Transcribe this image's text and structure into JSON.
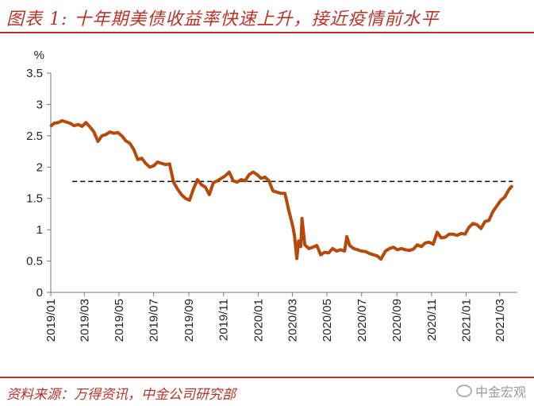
{
  "header": {
    "title": "图表 1: 十年期美债收益率快速上升，接近疫情前水平"
  },
  "footer": {
    "source": "资料来源：万得资讯，中金公司研究部",
    "watermark": "中金宏观"
  },
  "colors": {
    "accent": "#b5352a",
    "series": "#b64a0c",
    "reference": "#000000"
  },
  "icons": {
    "watermark": "wechat-logo-icon"
  },
  "chart_data": {
    "type": "line",
    "unit_label": "%",
    "ylim": [
      0,
      3.5
    ],
    "yticks": [
      "0",
      "0.5",
      "1",
      "1.5",
      "2",
      "2.5",
      "3",
      "3.5"
    ],
    "xlim": [
      "2019-01-01",
      "2021-04-01"
    ],
    "xticks": [
      "2019/01",
      "2019/03",
      "2019/05",
      "2019/07",
      "2019/09",
      "2019/11",
      "2020/01",
      "2020/03",
      "2020/05",
      "2020/07",
      "2020/09",
      "2020/11",
      "2021/01",
      "2021/03"
    ],
    "reference_line": {
      "value": 1.77,
      "style": "dashed",
      "from": "2019-02-08",
      "to": "2021-03-24"
    },
    "grid": false,
    "legend": "none",
    "series": [
      {
        "points": [
          [
            "2019-01-02",
            2.66
          ],
          [
            "2019-01-07",
            2.7
          ],
          [
            "2019-01-14",
            2.71
          ],
          [
            "2019-01-21",
            2.74
          ],
          [
            "2019-01-28",
            2.72
          ],
          [
            "2019-02-04",
            2.7
          ],
          [
            "2019-02-11",
            2.66
          ],
          [
            "2019-02-18",
            2.68
          ],
          [
            "2019-02-25",
            2.65
          ],
          [
            "2019-03-04",
            2.71
          ],
          [
            "2019-03-11",
            2.64
          ],
          [
            "2019-03-18",
            2.56
          ],
          [
            "2019-03-25",
            2.41
          ],
          [
            "2019-04-01",
            2.5
          ],
          [
            "2019-04-08",
            2.52
          ],
          [
            "2019-04-15",
            2.56
          ],
          [
            "2019-04-22",
            2.54
          ],
          [
            "2019-04-29",
            2.55
          ],
          [
            "2019-05-06",
            2.5
          ],
          [
            "2019-05-13",
            2.42
          ],
          [
            "2019-05-20",
            2.38
          ],
          [
            "2019-05-27",
            2.28
          ],
          [
            "2019-06-03",
            2.12
          ],
          [
            "2019-06-10",
            2.14
          ],
          [
            "2019-06-17",
            2.06
          ],
          [
            "2019-06-24",
            2.0
          ],
          [
            "2019-07-01",
            2.02
          ],
          [
            "2019-07-08",
            2.08
          ],
          [
            "2019-07-15",
            2.06
          ],
          [
            "2019-07-22",
            2.04
          ],
          [
            "2019-07-29",
            2.05
          ],
          [
            "2019-08-05",
            1.76
          ],
          [
            "2019-08-12",
            1.65
          ],
          [
            "2019-08-19",
            1.56
          ],
          [
            "2019-08-26",
            1.5
          ],
          [
            "2019-09-02",
            1.47
          ],
          [
            "2019-09-09",
            1.65
          ],
          [
            "2019-09-16",
            1.8
          ],
          [
            "2019-09-23",
            1.72
          ],
          [
            "2019-09-30",
            1.68
          ],
          [
            "2019-10-07",
            1.56
          ],
          [
            "2019-10-14",
            1.75
          ],
          [
            "2019-10-21",
            1.78
          ],
          [
            "2019-10-28",
            1.82
          ],
          [
            "2019-11-04",
            1.86
          ],
          [
            "2019-11-11",
            1.92
          ],
          [
            "2019-11-18",
            1.78
          ],
          [
            "2019-11-25",
            1.76
          ],
          [
            "2019-12-02",
            1.8
          ],
          [
            "2019-12-09",
            1.78
          ],
          [
            "2019-12-16",
            1.88
          ],
          [
            "2019-12-23",
            1.92
          ],
          [
            "2019-12-30",
            1.88
          ],
          [
            "2020-01-06",
            1.82
          ],
          [
            "2020-01-13",
            1.84
          ],
          [
            "2020-01-20",
            1.78
          ],
          [
            "2020-01-27",
            1.62
          ],
          [
            "2020-02-03",
            1.6
          ],
          [
            "2020-02-10",
            1.58
          ],
          [
            "2020-02-17",
            1.58
          ],
          [
            "2020-02-24",
            1.3
          ],
          [
            "2020-03-02",
            1.05
          ],
          [
            "2020-03-05",
            0.9
          ],
          [
            "2020-03-09",
            0.54
          ],
          [
            "2020-03-12",
            0.82
          ],
          [
            "2020-03-16",
            0.73
          ],
          [
            "2020-03-18",
            1.18
          ],
          [
            "2020-03-23",
            0.76
          ],
          [
            "2020-03-30",
            0.7
          ],
          [
            "2020-04-06",
            0.72
          ],
          [
            "2020-04-13",
            0.75
          ],
          [
            "2020-04-20",
            0.6
          ],
          [
            "2020-04-27",
            0.64
          ],
          [
            "2020-05-04",
            0.63
          ],
          [
            "2020-05-11",
            0.7
          ],
          [
            "2020-05-18",
            0.66
          ],
          [
            "2020-05-25",
            0.68
          ],
          [
            "2020-06-01",
            0.66
          ],
          [
            "2020-06-05",
            0.89
          ],
          [
            "2020-06-10",
            0.75
          ],
          [
            "2020-06-17",
            0.7
          ],
          [
            "2020-06-24",
            0.68
          ],
          [
            "2020-07-01",
            0.66
          ],
          [
            "2020-07-08",
            0.65
          ],
          [
            "2020-07-15",
            0.62
          ],
          [
            "2020-07-22",
            0.6
          ],
          [
            "2020-07-29",
            0.58
          ],
          [
            "2020-08-04",
            0.53
          ],
          [
            "2020-08-12",
            0.66
          ],
          [
            "2020-08-19",
            0.7
          ],
          [
            "2020-08-26",
            0.72
          ],
          [
            "2020-09-02",
            0.68
          ],
          [
            "2020-09-09",
            0.7
          ],
          [
            "2020-09-16",
            0.68
          ],
          [
            "2020-09-23",
            0.67
          ],
          [
            "2020-09-30",
            0.69
          ],
          [
            "2020-10-07",
            0.76
          ],
          [
            "2020-10-14",
            0.73
          ],
          [
            "2020-10-21",
            0.79
          ],
          [
            "2020-10-28",
            0.8
          ],
          [
            "2020-11-04",
            0.77
          ],
          [
            "2020-11-11",
            0.96
          ],
          [
            "2020-11-18",
            0.87
          ],
          [
            "2020-11-25",
            0.88
          ],
          [
            "2020-12-02",
            0.93
          ],
          [
            "2020-12-09",
            0.93
          ],
          [
            "2020-12-16",
            0.91
          ],
          [
            "2020-12-23",
            0.94
          ],
          [
            "2020-12-30",
            0.93
          ],
          [
            "2021-01-06",
            1.04
          ],
          [
            "2021-01-13",
            1.1
          ],
          [
            "2021-01-20",
            1.08
          ],
          [
            "2021-01-27",
            1.02
          ],
          [
            "2021-02-03",
            1.13
          ],
          [
            "2021-02-10",
            1.15
          ],
          [
            "2021-02-17",
            1.29
          ],
          [
            "2021-02-24",
            1.38
          ],
          [
            "2021-03-03",
            1.47
          ],
          [
            "2021-03-10",
            1.52
          ],
          [
            "2021-03-17",
            1.64
          ],
          [
            "2021-03-22",
            1.69
          ]
        ]
      }
    ]
  }
}
